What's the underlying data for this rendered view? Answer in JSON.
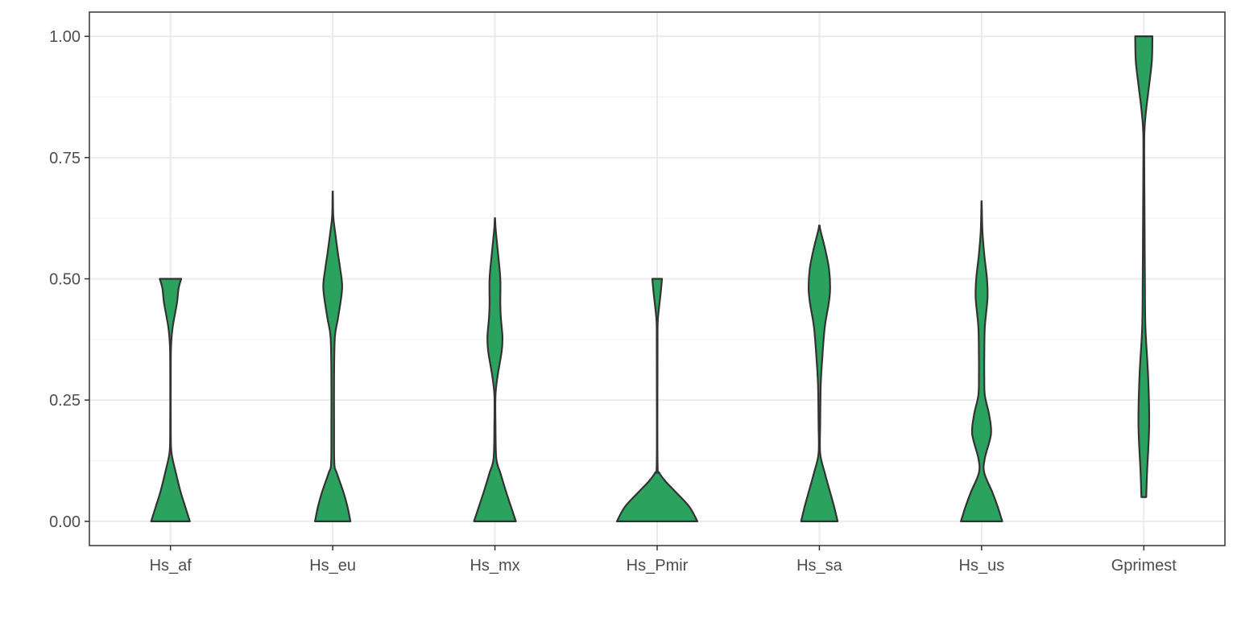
{
  "chart_data": {
    "type": "violin",
    "title": "",
    "xlabel": "",
    "ylabel": "",
    "categories": [
      "Hs_af",
      "Hs_eu",
      "Hs_mx",
      "Hs_Pmir",
      "Hs_sa",
      "Hs_us",
      "Gprimest"
    ],
    "ylim": [
      -0.05,
      1.05
    ],
    "yticks": [
      0.0,
      0.25,
      0.5,
      0.75,
      1.0
    ],
    "ytick_labels": [
      "0.00",
      "0.25",
      "0.50",
      "0.75",
      "1.00"
    ],
    "grid": true,
    "legend": "none",
    "fill_color": "#2ca25f",
    "stroke_color": "#333333",
    "violins": [
      {
        "category": "Hs_af",
        "ymin": 0.0,
        "ymax": 0.5,
        "profile": [
          [
            0.0,
            0.72
          ],
          [
            0.03,
            0.55
          ],
          [
            0.06,
            0.38
          ],
          [
            0.1,
            0.2
          ],
          [
            0.14,
            0.04
          ],
          [
            0.18,
            0.012
          ],
          [
            0.3,
            0.01
          ],
          [
            0.36,
            0.02
          ],
          [
            0.4,
            0.08
          ],
          [
            0.45,
            0.24
          ],
          [
            0.48,
            0.3
          ],
          [
            0.5,
            0.4
          ]
        ]
      },
      {
        "category": "Hs_eu",
        "ymin": 0.0,
        "ymax": 0.68,
        "profile": [
          [
            0.0,
            0.66
          ],
          [
            0.03,
            0.55
          ],
          [
            0.06,
            0.4
          ],
          [
            0.1,
            0.15
          ],
          [
            0.12,
            0.06
          ],
          [
            0.2,
            0.05
          ],
          [
            0.3,
            0.05
          ],
          [
            0.38,
            0.08
          ],
          [
            0.42,
            0.2
          ],
          [
            0.48,
            0.35
          ],
          [
            0.52,
            0.28
          ],
          [
            0.55,
            0.2
          ],
          [
            0.6,
            0.08
          ],
          [
            0.63,
            0.02
          ],
          [
            0.68,
            0.005
          ]
        ]
      },
      {
        "category": "Hs_mx",
        "ymin": 0.0,
        "ymax": 0.625,
        "profile": [
          [
            0.0,
            0.78
          ],
          [
            0.03,
            0.6
          ],
          [
            0.06,
            0.42
          ],
          [
            0.1,
            0.2
          ],
          [
            0.13,
            0.05
          ],
          [
            0.2,
            0.02
          ],
          [
            0.26,
            0.02
          ],
          [
            0.3,
            0.1
          ],
          [
            0.35,
            0.25
          ],
          [
            0.38,
            0.28
          ],
          [
            0.42,
            0.22
          ],
          [
            0.45,
            0.2
          ],
          [
            0.5,
            0.2
          ],
          [
            0.55,
            0.12
          ],
          [
            0.6,
            0.03
          ],
          [
            0.625,
            0.005
          ]
        ]
      },
      {
        "category": "Hs_Pmir",
        "ymin": 0.0,
        "ymax": 0.5,
        "profile": [
          [
            0.0,
            1.5
          ],
          [
            0.03,
            1.2
          ],
          [
            0.06,
            0.7
          ],
          [
            0.08,
            0.35
          ],
          [
            0.1,
            0.08
          ],
          [
            0.12,
            0.015
          ],
          [
            0.3,
            0.012
          ],
          [
            0.4,
            0.015
          ],
          [
            0.43,
            0.05
          ],
          [
            0.47,
            0.13
          ],
          [
            0.5,
            0.18
          ]
        ]
      },
      {
        "category": "Hs_sa",
        "ymin": 0.0,
        "ymax": 0.61,
        "profile": [
          [
            0.0,
            0.68
          ],
          [
            0.03,
            0.55
          ],
          [
            0.06,
            0.4
          ],
          [
            0.1,
            0.2
          ],
          [
            0.14,
            0.03
          ],
          [
            0.2,
            0.03
          ],
          [
            0.28,
            0.05
          ],
          [
            0.33,
            0.1
          ],
          [
            0.4,
            0.2
          ],
          [
            0.45,
            0.35
          ],
          [
            0.48,
            0.4
          ],
          [
            0.52,
            0.36
          ],
          [
            0.56,
            0.22
          ],
          [
            0.6,
            0.04
          ],
          [
            0.61,
            0.01
          ]
        ]
      },
      {
        "category": "Hs_us",
        "ymin": 0.0,
        "ymax": 0.66,
        "profile": [
          [
            0.0,
            0.77
          ],
          [
            0.03,
            0.6
          ],
          [
            0.06,
            0.4
          ],
          [
            0.1,
            0.1
          ],
          [
            0.13,
            0.12
          ],
          [
            0.18,
            0.35
          ],
          [
            0.22,
            0.28
          ],
          [
            0.26,
            0.12
          ],
          [
            0.3,
            0.1
          ],
          [
            0.34,
            0.1
          ],
          [
            0.4,
            0.12
          ],
          [
            0.46,
            0.22
          ],
          [
            0.5,
            0.2
          ],
          [
            0.55,
            0.1
          ],
          [
            0.6,
            0.03
          ],
          [
            0.66,
            0.005
          ]
        ]
      },
      {
        "category": "Gprimest",
        "ymin": 0.05,
        "ymax": 1.0,
        "profile": [
          [
            0.05,
            0.09
          ],
          [
            0.1,
            0.12
          ],
          [
            0.2,
            0.2
          ],
          [
            0.3,
            0.16
          ],
          [
            0.4,
            0.06
          ],
          [
            0.5,
            0.04
          ],
          [
            0.6,
            0.03
          ],
          [
            0.7,
            0.02
          ],
          [
            0.8,
            0.02
          ],
          [
            0.85,
            0.09
          ],
          [
            0.9,
            0.2
          ],
          [
            0.95,
            0.3
          ],
          [
            1.0,
            0.32
          ]
        ]
      }
    ]
  }
}
